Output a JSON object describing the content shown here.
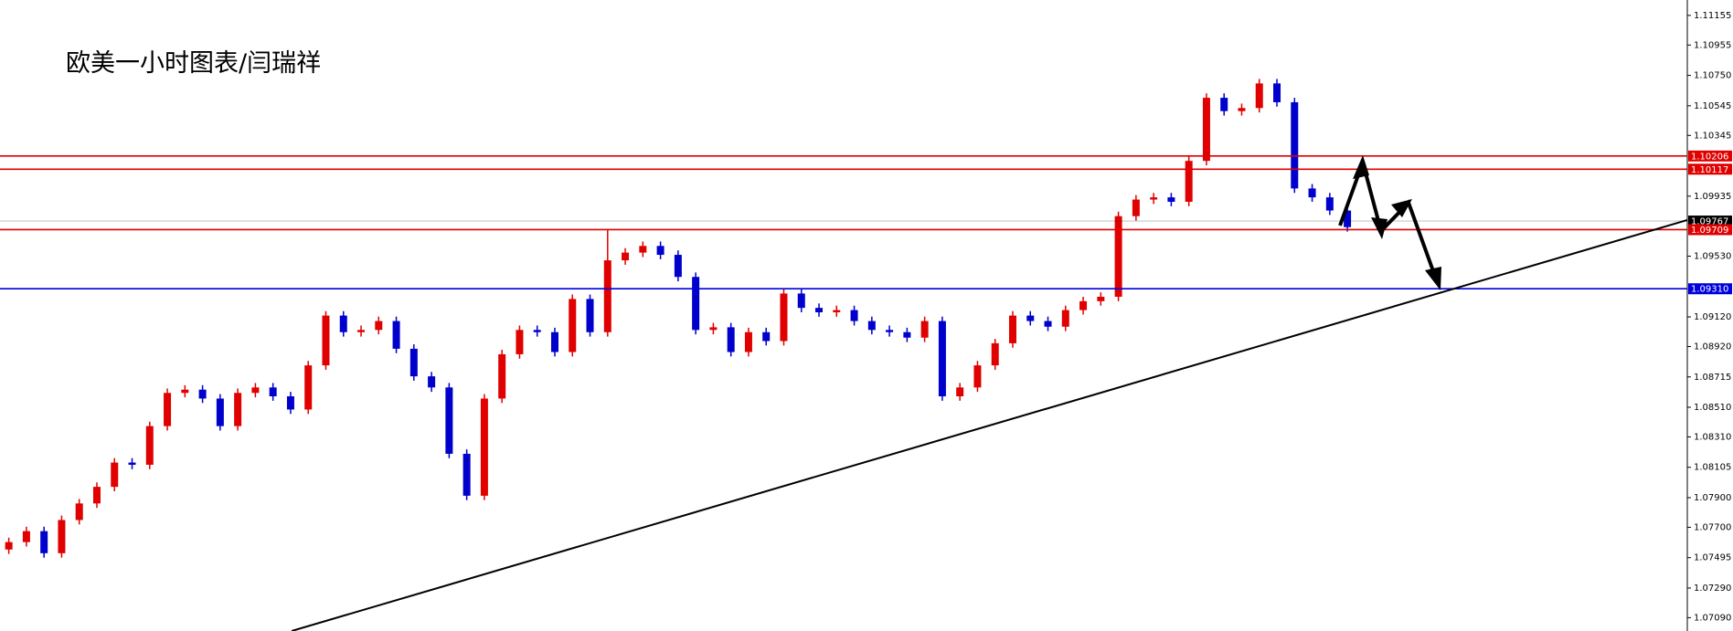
{
  "chart_data": {
    "type": "candlestick",
    "title": "欧美一小时图表/闫瑞祥",
    "ylim": [
      1.07,
      1.11259
    ],
    "xlim": [
      0,
      95.8
    ],
    "yticks": [
      1.11155,
      1.10955,
      {
        "value": 1.1075,
        "label": "1.10750"
      },
      1.10545,
      1.10345,
      1.09935,
      {
        "value": 1.0953,
        "label": "1.09530"
      },
      {
        "value": 1.0912,
        "label": "1.09120"
      },
      {
        "value": 1.0892,
        "label": "1.08920"
      },
      1.08715,
      {
        "value": 1.0851,
        "label": "1.08510"
      },
      {
        "value": 1.0831,
        "label": "1.08310"
      },
      1.08105,
      {
        "value": 1.079,
        "label": "1.07900"
      },
      {
        "value": 1.077,
        "label": "1.07700"
      },
      1.07495,
      {
        "value": 1.0729,
        "label": "1.07290"
      },
      {
        "value": 1.0709,
        "label": "1.07090"
      }
    ],
    "up_color": "#e00000",
    "down_color": "#0000cc",
    "open": [
      1.0755,
      1.076,
      1.07674,
      1.07525,
      1.07749,
      1.07861,
      1.07973,
      1.08137,
      1.08122,
      1.08383,
      1.08607,
      1.08629,
      1.08569,
      1.08383,
      1.08607,
      1.08644,
      1.08584,
      1.08495,
      1.08793,
      1.09129,
      1.09017,
      1.09032,
      1.09092,
      1.08905,
      1.08719,
      1.08644,
      1.08196,
      1.07913,
      1.08569,
      1.08868,
      1.09032,
      1.09017,
      1.08883,
      1.09241,
      1.09017,
      1.09502,
      1.09554,
      1.09599,
      1.09539,
      1.0939,
      1.09032,
      1.0905,
      1.08883,
      1.09017,
      1.08957,
      1.09278,
      1.09181,
      1.09151,
      1.09166,
      1.09092,
      1.09032,
      1.09017,
      1.0898,
      1.09092,
      1.08584,
      1.08644,
      1.08793,
      1.08942,
      1.09129,
      1.09092,
      1.09054,
      1.09166,
      1.09226,
      1.09256,
      1.098,
      1.09912,
      1.09927,
      1.09897,
      1.10173,
      1.10599,
      1.10509,
      1.1053,
      1.10696,
      1.10569,
      1.09987,
      1.09927,
      1.09838
    ],
    "high": [
      1.0763,
      1.07704,
      1.07704,
      1.07779,
      1.07891,
      1.08003,
      1.08167,
      1.08167,
      1.08413,
      1.08637,
      1.08659,
      1.08659,
      1.08599,
      1.08637,
      1.08674,
      1.08674,
      1.08614,
      1.08823,
      1.09159,
      1.09159,
      1.09062,
      1.09122,
      1.09122,
      1.08935,
      1.08749,
      1.08674,
      1.08226,
      1.08599,
      1.08898,
      1.09062,
      1.09062,
      1.09047,
      1.09271,
      1.09271,
      1.0971,
      1.09584,
      1.09629,
      1.09629,
      1.09569,
      1.0942,
      1.0908,
      1.0908,
      1.09047,
      1.09047,
      1.09308,
      1.09308,
      1.09211,
      1.09196,
      1.09196,
      1.09122,
      1.09062,
      1.09047,
      1.09122,
      1.09122,
      1.08674,
      1.08823,
      1.08972,
      1.09159,
      1.09159,
      1.09122,
      1.09196,
      1.09256,
      1.09286,
      1.0983,
      1.09942,
      1.09957,
      1.09957,
      1.10203,
      1.10629,
      1.10629,
      1.1056,
      1.10726,
      1.10726,
      1.10599,
      1.10017,
      1.09957,
      1.09868
    ],
    "low": [
      1.0752,
      1.0757,
      1.07495,
      1.07495,
      1.07719,
      1.07831,
      1.07943,
      1.08092,
      1.08092,
      1.08353,
      1.08577,
      1.08539,
      1.08353,
      1.08353,
      1.08577,
      1.08554,
      1.08465,
      1.08465,
      1.08763,
      1.08987,
      1.08987,
      1.09002,
      1.08875,
      1.08689,
      1.08614,
      1.08166,
      1.07883,
      1.07883,
      1.08539,
      1.08838,
      1.08987,
      1.08853,
      1.08853,
      1.08987,
      1.08987,
      1.09472,
      1.09524,
      1.09509,
      1.0936,
      1.09002,
      1.09002,
      1.08853,
      1.08853,
      1.08927,
      1.08927,
      1.09151,
      1.09121,
      1.09121,
      1.09062,
      1.09002,
      1.08987,
      1.0895,
      1.0895,
      1.08554,
      1.08554,
      1.08614,
      1.08763,
      1.08912,
      1.09062,
      1.09024,
      1.09024,
      1.09136,
      1.09196,
      1.09226,
      1.0977,
      1.09882,
      1.09867,
      1.09867,
      1.10143,
      1.10479,
      1.10479,
      1.105,
      1.10539,
      1.09957,
      1.09897,
      1.09808,
      1.09696
    ],
    "close": [
      1.076,
      1.07674,
      1.07525,
      1.07749,
      1.07861,
      1.07973,
      1.08137,
      1.08122,
      1.08383,
      1.08607,
      1.08629,
      1.08569,
      1.08383,
      1.08607,
      1.08644,
      1.08584,
      1.08495,
      1.08793,
      1.09129,
      1.09017,
      1.09032,
      1.09092,
      1.08905,
      1.08719,
      1.08644,
      1.08196,
      1.07913,
      1.08569,
      1.08868,
      1.09032,
      1.09017,
      1.08883,
      1.09241,
      1.09017,
      1.09502,
      1.09554,
      1.09599,
      1.09539,
      1.0939,
      1.09032,
      1.0905,
      1.08883,
      1.09017,
      1.08957,
      1.09278,
      1.09181,
      1.09151,
      1.09166,
      1.09092,
      1.09032,
      1.09017,
      1.0898,
      1.09092,
      1.08584,
      1.08644,
      1.08793,
      1.08942,
      1.09129,
      1.09092,
      1.09054,
      1.09166,
      1.09226,
      1.09256,
      1.098,
      1.09912,
      1.09927,
      1.09897,
      1.10173,
      1.10599,
      1.10509,
      1.1053,
      1.10696,
      1.10569,
      1.09987,
      1.09927,
      1.09838,
      1.09726
    ],
    "levels": [
      {
        "value": 1.10206,
        "color": "#e00000"
      },
      {
        "value": 1.10117,
        "color": "#e00000"
      },
      {
        "value": 1.09767,
        "color": "#000000"
      },
      {
        "value": 1.09709,
        "color": "#e00000"
      },
      {
        "value": 1.0931,
        "label": "1.09310",
        "color": "#0000dd"
      }
    ],
    "trendline": {
      "x": [
        16.56,
        95.8
      ],
      "y": [
        1.07,
        1.09774
      ],
      "color": "#000000"
    }
  }
}
